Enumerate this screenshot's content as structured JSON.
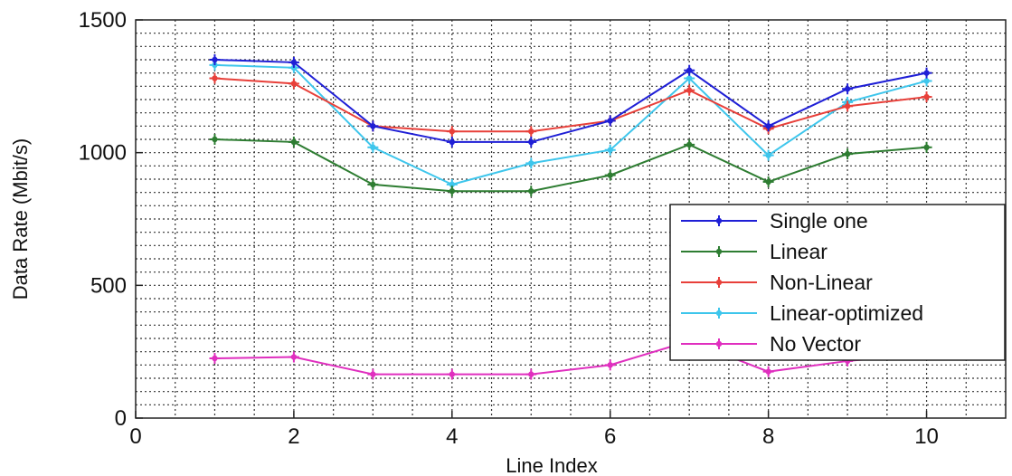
{
  "chart_data": {
    "type": "line",
    "title": "",
    "xlabel": "Line Index",
    "ylabel": "Data Rate (Mbit/s)",
    "xlim": [
      0,
      11
    ],
    "ylim": [
      0,
      1500
    ],
    "x_ticks": [
      0,
      2,
      4,
      6,
      8,
      10
    ],
    "y_ticks": [
      0,
      500,
      1000,
      1500
    ],
    "grid": true,
    "legend_position": "right",
    "x": [
      1,
      2,
      3,
      4,
      5,
      6,
      7,
      8,
      9,
      10
    ],
    "series": [
      {
        "name": "Single one",
        "color": "#1f1fd6",
        "values": [
          1350,
          1340,
          1100,
          1040,
          1040,
          1120,
          1310,
          1100,
          1240,
          1300
        ]
      },
      {
        "name": "Linear",
        "color": "#2e7d32",
        "values": [
          1050,
          1040,
          880,
          855,
          855,
          915,
          1030,
          890,
          995,
          1020
        ]
      },
      {
        "name": "Non-Linear",
        "color": "#e8403a",
        "values": [
          1280,
          1260,
          1100,
          1080,
          1080,
          1120,
          1235,
          1090,
          1175,
          1210
        ]
      },
      {
        "name": "Linear-optimized",
        "color": "#3ec6ec",
        "values": [
          1330,
          1320,
          1020,
          880,
          960,
          1010,
          1280,
          990,
          1190,
          1270
        ]
      },
      {
        "name": "No Vector",
        "color": "#e02fbf",
        "values": [
          225,
          230,
          165,
          165,
          165,
          200,
          290,
          175,
          215,
          240
        ]
      }
    ]
  }
}
